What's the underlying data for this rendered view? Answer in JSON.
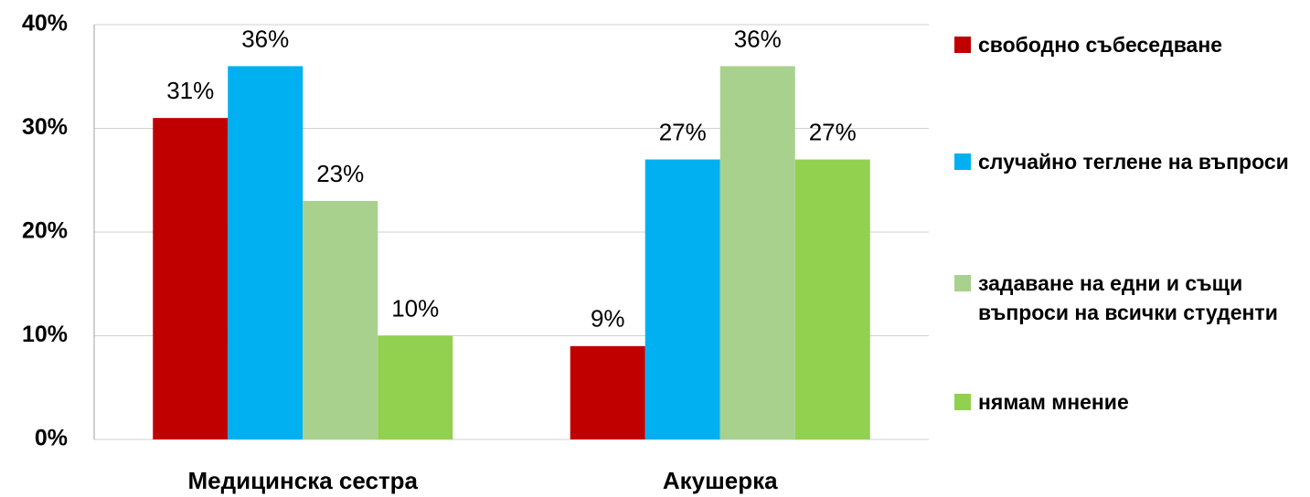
{
  "chart_data": {
    "type": "bar",
    "categories": [
      "Медицинска сестра",
      "Акушерка"
    ],
    "series": [
      {
        "name": "свободно събеседване",
        "color": "#c00000",
        "values": [
          31,
          9
        ],
        "value_labels": [
          "31%",
          "9%"
        ]
      },
      {
        "name": "случайно теглене на въпроси",
        "color": "#00b0f0",
        "values": [
          36,
          27
        ],
        "value_labels": [
          "36%",
          "27%"
        ]
      },
      {
        "name": "задаване на едни и същи въпроси на всички студенти",
        "color": "#a9d18e",
        "values": [
          23,
          36
        ],
        "value_labels": [
          "23%",
          "36%"
        ]
      },
      {
        "name": "нямам мнение",
        "color": "#92d050",
        "values": [
          10,
          27
        ],
        "value_labels": [
          "10%",
          "27%"
        ]
      }
    ],
    "ylim": [
      0,
      40
    ],
    "yticks": [
      {
        "value": 0,
        "label": "0%"
      },
      {
        "value": 10,
        "label": "10%"
      },
      {
        "value": 20,
        "label": "20%"
      },
      {
        "value": 30,
        "label": "30%"
      },
      {
        "value": 40,
        "label": "40%"
      }
    ],
    "grid": true,
    "legend": "right"
  }
}
